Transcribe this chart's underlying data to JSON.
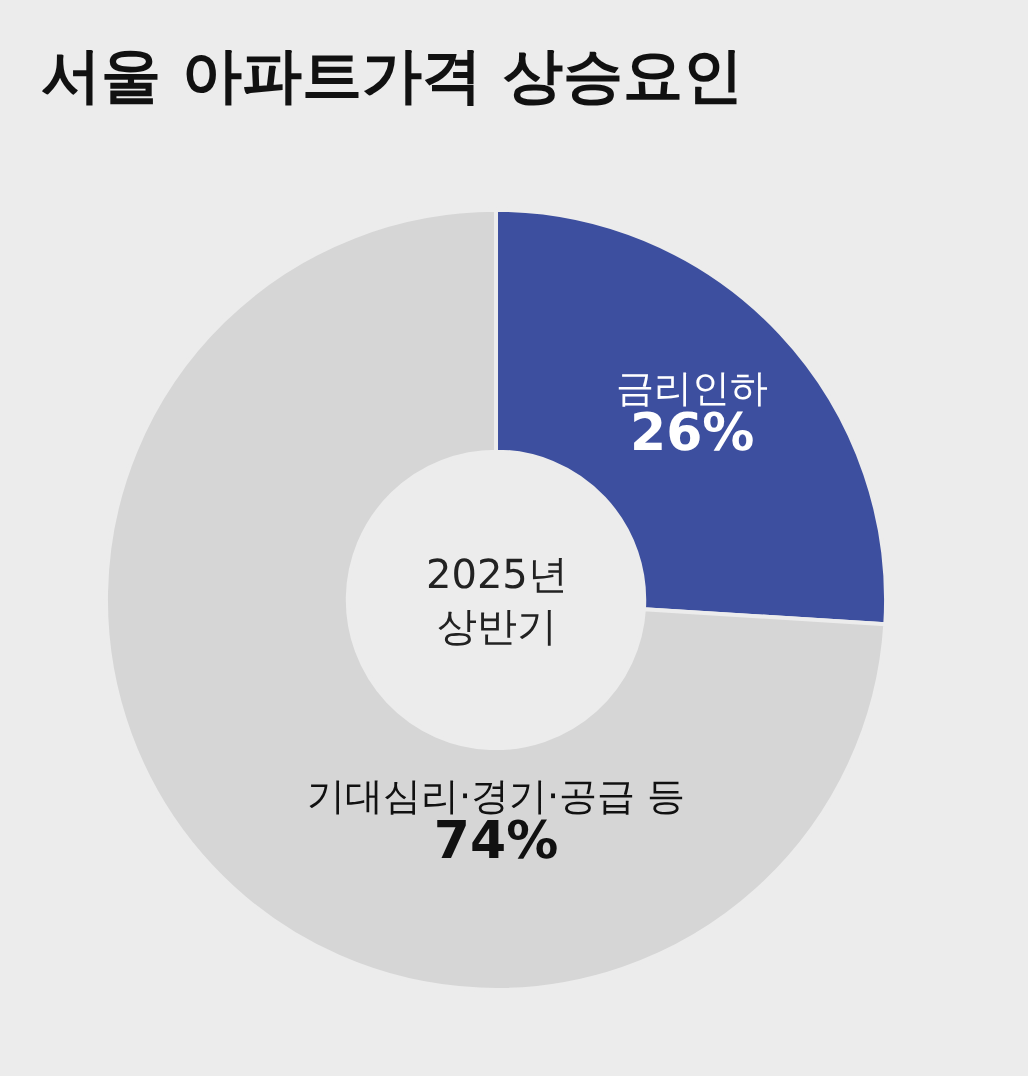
{
  "chart_data": {
    "type": "donut",
    "title": "서울 아파트가격 상승요인",
    "categories": [
      "금리인하",
      "기대심리·경기·공급 등"
    ],
    "values": [
      26,
      74
    ],
    "value_labels": [
      "26%",
      "74%"
    ],
    "colors": [
      "#3d4f9f",
      "#d6d6d6"
    ],
    "annotations": [
      "2025년\n상반기"
    ],
    "legend": false
  }
}
